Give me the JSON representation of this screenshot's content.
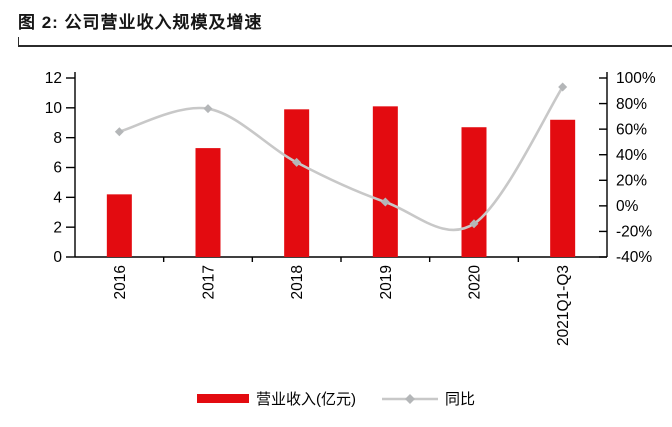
{
  "figure": {
    "title": "图 2: 公司营业收入规模及增速"
  },
  "colors": {
    "bar": "#e30b10",
    "line": "#c8c8c8",
    "marker": "#b4b6b8",
    "axis": "#000000",
    "rule": "#2b2b2b"
  },
  "chart_data": {
    "type": "bar",
    "title": "公司营业收入规模及增速",
    "categories": [
      "2016",
      "2017",
      "2018",
      "2019",
      "2020",
      "2021Q1-Q3"
    ],
    "series": [
      {
        "name": "营业收入(亿元)",
        "type": "bar",
        "axis": "left",
        "values": [
          4.2,
          7.3,
          9.9,
          10.1,
          8.7,
          9.2
        ]
      },
      {
        "name": "同比",
        "type": "line",
        "axis": "right",
        "unit": "%",
        "values": [
          58,
          76,
          34,
          3,
          -14,
          93
        ]
      }
    ],
    "left_axis": {
      "min": 0,
      "max": 12,
      "step": 2,
      "tick_labels": [
        "0",
        "2",
        "4",
        "6",
        "8",
        "10",
        "12"
      ]
    },
    "right_axis": {
      "min": -40,
      "max": 100,
      "step": 20,
      "suffix": "%",
      "tick_labels": [
        "-40%",
        "-20%",
        "0%",
        "20%",
        "40%",
        "60%",
        "80%",
        "100%"
      ]
    },
    "grid": false,
    "legend_position": "bottom",
    "x_tick_labels_rotated_deg": 90
  }
}
